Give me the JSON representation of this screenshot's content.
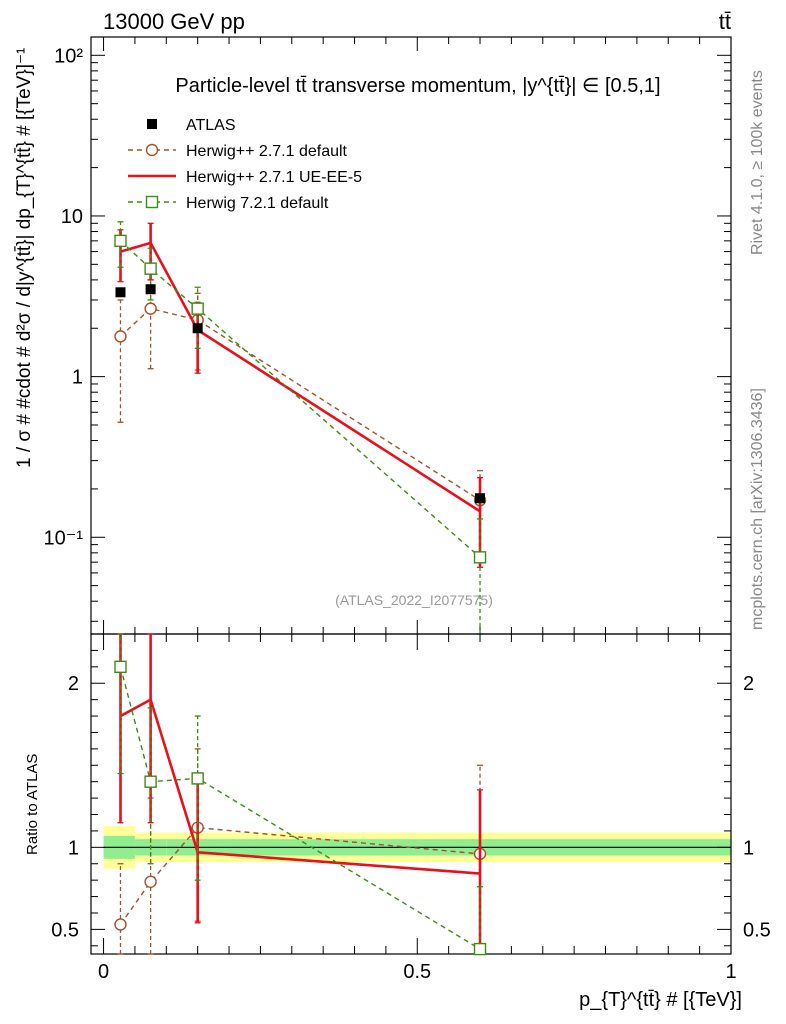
{
  "header": {
    "left": "13000 GeV pp",
    "right": "tt̄",
    "side_top": "Rivet 4.1.0, ≥ 100k events",
    "side_bottom": "mcplots.cern.ch [arXiv:1306.3436]"
  },
  "chart_data": [
    {
      "type": "line",
      "panel": "main",
      "title": "Particle-level tt̄ transverse momentum, |y^{tt̄}| ∈ [0.5,1]",
      "ylabel": "1 / σ # #cdot # d²σ / d|y^{tt̄}| dp_{T}^{tt̄} # [{TeV}]⁻¹",
      "xlabel": "",
      "yscale": "log",
      "ylim": [
        0.025,
        130
      ],
      "xlim": [
        -0.02,
        1.0
      ],
      "y_ticks": [
        "10⁻¹",
        "1",
        "10",
        "10²"
      ],
      "watermark": "(ATLAS_2022_I2077575)",
      "series": [
        {
          "name": "ATLAS",
          "color": "#000000",
          "style": "data-points",
          "x": [
            0.027,
            0.075,
            0.15,
            0.6
          ],
          "y": [
            3.35,
            3.5,
            2.0,
            0.175
          ]
        },
        {
          "name": "Herwig++ 2.7.1 default",
          "color": "#a0522d",
          "style": "dashed-circle",
          "x": [
            0.027,
            0.075,
            0.15,
            0.6
          ],
          "y": [
            1.78,
            2.65,
            2.25,
            0.17
          ],
          "err_low": [
            0.52,
            1.12,
            1.1,
            0.07
          ],
          "err_high": [
            3.0,
            4.0,
            3.3,
            0.26
          ]
        },
        {
          "name": "Herwig++ 2.7.1 UE-EE-5",
          "color": "#e8101c",
          "style": "solid-line",
          "x": [
            0.027,
            0.075,
            0.15,
            0.6
          ],
          "y": [
            6.0,
            6.8,
            1.95,
            0.145
          ],
          "err_low": [
            3.9,
            4.0,
            1.05,
            0.065
          ],
          "err_high": [
            8.2,
            9.0,
            2.9,
            0.235
          ]
        },
        {
          "name": "Herwig 7.2.1 default",
          "color": "#3c8c12",
          "style": "dashed-square",
          "x": [
            0.027,
            0.075,
            0.15,
            0.6
          ],
          "y": [
            7.0,
            4.7,
            2.65,
            0.075
          ],
          "err_low": [
            4.8,
            3.0,
            1.5,
            0.025
          ],
          "err_high": [
            9.2,
            6.3,
            3.6,
            0.13
          ]
        }
      ]
    },
    {
      "type": "line",
      "panel": "ratio",
      "title": "",
      "ylabel": "Ratio to ATLAS",
      "xlabel": "p_{T}^{tt̄} # [{TeV}]",
      "ylim": [
        0.35,
        2.3
      ],
      "xlim": [
        -0.02,
        1.0
      ],
      "y_ticks": [
        "0.5",
        "1",
        "2"
      ],
      "x_ticks": [
        "0",
        "0.5",
        "1"
      ],
      "bands": {
        "bin_edges": [
          0.0,
          0.05,
          0.1,
          0.2,
          1.0
        ],
        "yellow_low": [
          0.87,
          0.91,
          0.91,
          0.91
        ],
        "yellow_high": [
          1.13,
          1.09,
          1.09,
          1.09
        ],
        "green_low": [
          0.93,
          0.95,
          0.95,
          0.95
        ],
        "green_high": [
          1.07,
          1.05,
          1.05,
          1.05
        ]
      },
      "series": [
        {
          "name": "Herwig++ 2.7.1 default",
          "color": "#a0522d",
          "style": "dashed-circle",
          "x": [
            0.027,
            0.075,
            0.15,
            0.6
          ],
          "y": [
            0.53,
            0.79,
            1.12,
            0.96
          ],
          "err_low": [
            0.35,
            0.35,
            0.55,
            0.4
          ],
          "err_high": [
            0.9,
            1.3,
            1.6,
            1.5
          ]
        },
        {
          "name": "Herwig++ 2.7.1 UE-EE-5",
          "color": "#e8101c",
          "style": "solid-line",
          "x": [
            0.027,
            0.075,
            0.15,
            0.6
          ],
          "y": [
            1.8,
            1.9,
            0.97,
            0.84
          ],
          "err_low": [
            1.15,
            1.15,
            0.54,
            0.37
          ],
          "err_high": [
            2.3,
            2.35,
            1.4,
            1.35
          ]
        },
        {
          "name": "Herwig 7.2.1 default",
          "color": "#3c8c12",
          "style": "dashed-square",
          "x": [
            0.027,
            0.075,
            0.15,
            0.6
          ],
          "y": [
            2.1,
            1.4,
            1.42,
            0.38
          ],
          "err_low": [
            1.45,
            0.9,
            0.8,
            0.35
          ],
          "err_high": [
            2.3,
            1.85,
            1.8,
            0.76
          ]
        }
      ]
    }
  ]
}
